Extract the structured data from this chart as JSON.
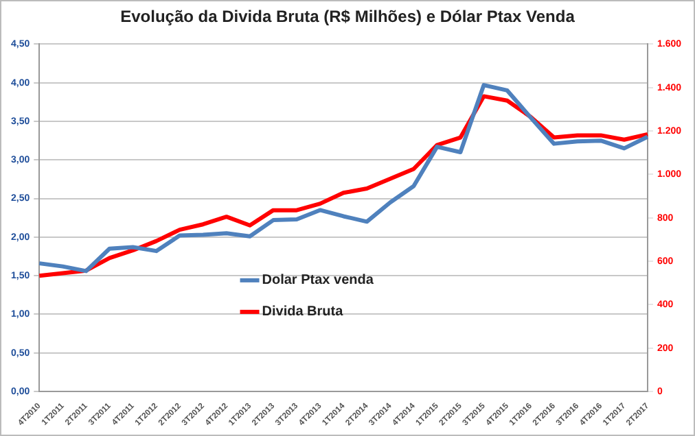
{
  "chart_data": {
    "type": "line",
    "title": "Evolução da Divida Bruta (R$ Milhões) e Dólar Ptax Venda",
    "categories": [
      "4T2010",
      "1T2011",
      "2T2011",
      "3T2011",
      "4T2011",
      "1T2012",
      "2T2012",
      "3T2012",
      "4T2012",
      "1T2013",
      "2T2013",
      "3T2013",
      "4T2013",
      "1T2014",
      "2T2014",
      "3T2014",
      "4T2014",
      "1T2015",
      "2T2015",
      "3T2015",
      "4T2015",
      "1T2016",
      "2T2016",
      "3T2016",
      "4T2016",
      "1T2017",
      "2T2017"
    ],
    "series": [
      {
        "name": "Dolar Ptax venda",
        "color": "#4f81bd",
        "values": [
          1.66,
          1.62,
          1.56,
          1.85,
          1.87,
          1.82,
          2.02,
          2.03,
          2.05,
          2.01,
          2.22,
          2.23,
          2.35,
          2.27,
          2.2,
          2.45,
          2.66,
          3.17,
          3.1,
          3.97,
          3.9,
          3.55,
          3.21,
          3.24,
          3.25,
          3.15,
          3.3
        ]
      },
      {
        "name": "Divida Bruta",
        "color": "#ff0000",
        "axis": "y2",
        "values": [
          533,
          545,
          557,
          615,
          650,
          693,
          745,
          770,
          805,
          765,
          835,
          835,
          865,
          915,
          935,
          980,
          1025,
          1135,
          1170,
          1360,
          1340,
          1265,
          1170,
          1180,
          1180,
          1160,
          1185
        ]
      }
    ],
    "ylim": [
      0,
      4.5
    ],
    "yticks": [
      {
        "value": 0,
        "label": "0,00"
      },
      {
        "value": 0.5,
        "label": "0,50"
      },
      {
        "value": 1,
        "label": "1,00"
      },
      {
        "value": 1.5,
        "label": "1,50"
      },
      {
        "value": 2,
        "label": "2,00"
      },
      {
        "value": 2.5,
        "label": "2,50"
      },
      {
        "value": 3,
        "label": "3,00"
      },
      {
        "value": 3.5,
        "label": "3,50"
      },
      {
        "value": 4,
        "label": "4,00"
      },
      {
        "value": 4.5,
        "label": "4,50"
      }
    ],
    "y2lim": [
      0,
      1600
    ],
    "y2ticks": [
      0,
      200,
      400,
      600,
      800,
      {
        "value": 1000,
        "label": "1.000"
      },
      {
        "value": 1200,
        "label": "1.200"
      },
      {
        "value": 1400,
        "label": "1.400"
      },
      {
        "value": 1600,
        "label": "1.600"
      }
    ],
    "grid": "y",
    "legend": "center",
    "marker": "none"
  }
}
